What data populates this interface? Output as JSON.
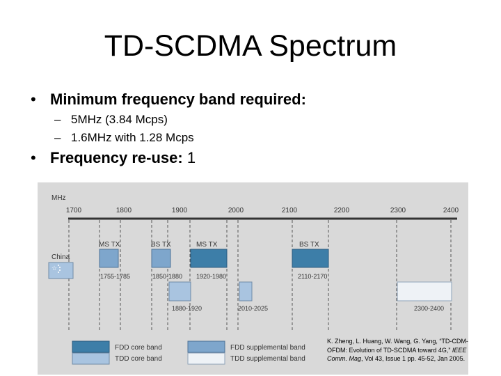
{
  "slide": {
    "title": "TD-SCDMA Spectrum",
    "bullets": [
      {
        "label": "Minimum frequency band required:",
        "rest": "",
        "subs": [
          "5MHz (3.84 Mcps)",
          "1.6MHz with 1.28 Mcps"
        ]
      },
      {
        "label": "Frequency re-use:",
        "rest": " 1",
        "subs": []
      }
    ],
    "bullet_glyph": "•",
    "dash_glyph": "–"
  },
  "figure": {
    "unit": "MHz",
    "ticks": [
      "1700",
      "1800",
      "1900",
      "2000",
      "2100",
      "2200",
      "2300",
      "2400"
    ],
    "region": "China",
    "band_labels": {
      "ms_tx_1": "MS TX",
      "bs_tx_1": "BS TX",
      "ms_tx_2": "MS TX",
      "bs_tx_2": "BS TX",
      "r1": "1755-1785",
      "r2": "1850-1880",
      "r3": "1920-1980",
      "r4": "2110-2170",
      "r5": "1880-1920",
      "r6": "2010-2025",
      "r7": "2300-2400"
    },
    "legend": {
      "fdd_core": "FDD core band",
      "tdd_core": "TDD core band",
      "fdd_supp": "FDD supplemental band",
      "tdd_supp": "TDD supplemental band"
    },
    "colors": {
      "fdd_core": "#3d7ea8",
      "tdd_core": "#a9c4e0",
      "fdd_supp": "#7ea6cc",
      "tdd_supp": "#eef2f6"
    }
  },
  "reference": {
    "authors": "K. Zheng, L. Huang, W. Wang, G. Yang,",
    "paper": "“TD-CDM-OFDM: Evolution of TD-SCDMA toward 4G,”",
    "journal": "IEEE Comm. Mag",
    "details": ", Vol 43, Issue 1 pp. 45-52, Jan 2005."
  }
}
